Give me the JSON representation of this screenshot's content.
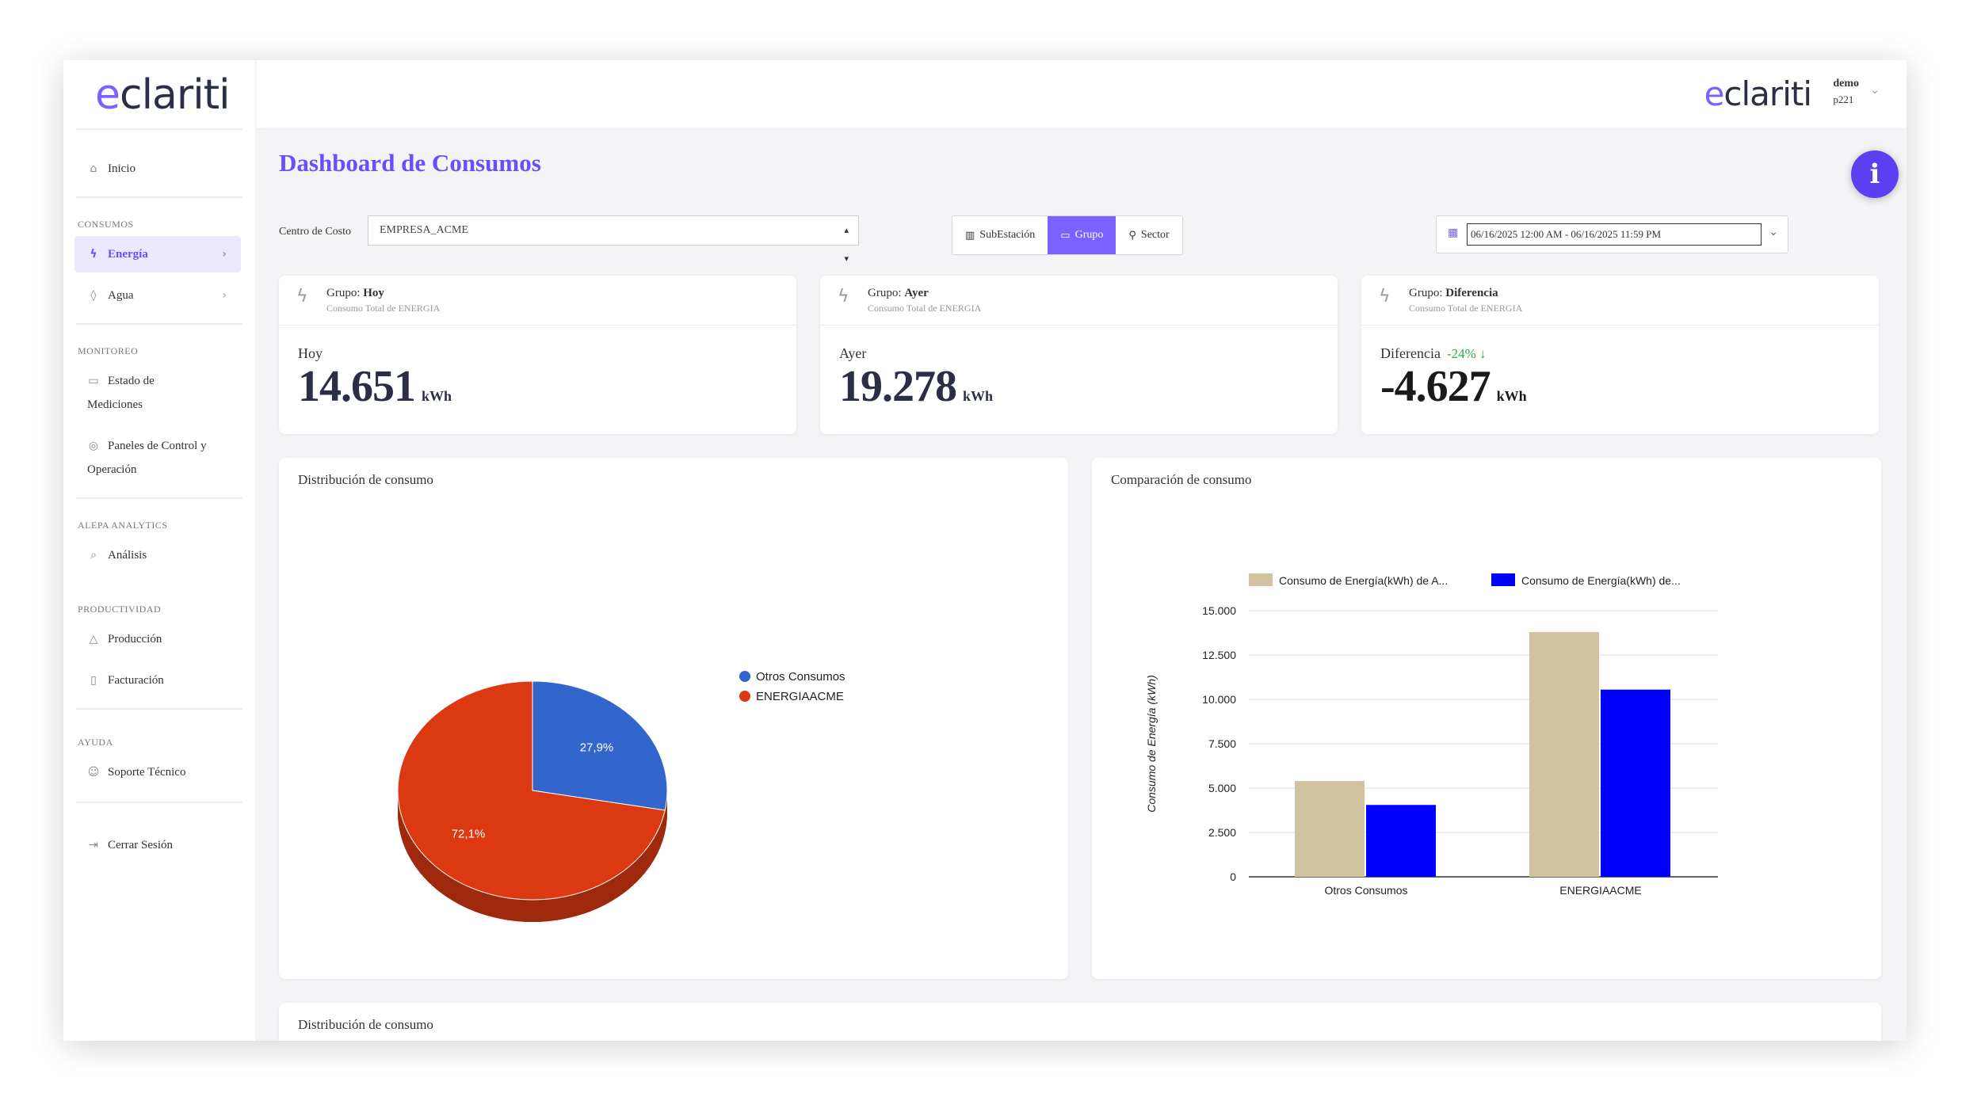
{
  "brand": {
    "name": "clariti",
    "letter": "e"
  },
  "user": {
    "name": "demo",
    "code": "p221"
  },
  "sidebar": {
    "inicio": "Inicio",
    "sections": {
      "consumos": "CONSUMOS",
      "monitoreo": "MONITOREO",
      "analytics": "ALEPA ANALYTICS",
      "productividad": "PRODUCTIVIDAD",
      "ayuda": "AYUDA"
    },
    "energia": "Energía",
    "agua": "Agua",
    "estado_line1": "Estado de",
    "estado_line2": "Mediciones",
    "paneles_line1": "Paneles de Control y",
    "paneles_line2": "Operación",
    "analisis": "Análisis",
    "produccion": "Producción",
    "facturacion": "Facturación",
    "soporte": "Soporte Técnico",
    "cerrar": "Cerrar Sesión"
  },
  "page": {
    "title": "Dashboard de Consumos"
  },
  "filters": {
    "cost_center_label": "Centro de Costo",
    "cost_center_value": "EMPRESA_ACME",
    "segments": [
      "SubEstación",
      "Grupo",
      "Sector"
    ],
    "active_segment": "Grupo",
    "date_range": "06/16/2025 12:00 AM - 06/16/2025 11:59 PM"
  },
  "kpis": {
    "subtitle": "Consumo Total de ENERGIA",
    "group_prefix": "Grupo:",
    "hoy": {
      "name": "Hoy",
      "label": "Hoy",
      "value": "14.651",
      "unit": "kWh"
    },
    "ayer": {
      "name": "Ayer",
      "label": "Ayer",
      "value": "19.278",
      "unit": "kWh"
    },
    "diferencia": {
      "name": "Diferencia",
      "label": "Diferencia",
      "delta": "-24%",
      "value": "-4.627",
      "unit": "kWh"
    }
  },
  "panels": {
    "distribucion": "Distribución de consumo",
    "comparacion": "Comparación de consumo",
    "distribucion2": "Distribución de consumo"
  },
  "colors": {
    "accent": "#6a4dff",
    "pie_otros": "#3366cc",
    "pie_energia": "#dc3912",
    "bar_a": "#cfc3a0",
    "bar_b": "#0000ff"
  },
  "chart_data": [
    {
      "type": "pie",
      "title": "Distribución de consumo",
      "labels": [
        "Otros Consumos",
        "ENERGIAACME"
      ],
      "values": [
        27.9,
        72.1
      ],
      "data_labels": [
        "27,9%",
        "72,1%"
      ],
      "legend": "right"
    },
    {
      "type": "bar",
      "title": "Comparación de consumo",
      "categories": [
        "Otros Consumos",
        "ENERGIAACME"
      ],
      "series": [
        {
          "name": "Consumo de Energía(kWh) de A...",
          "values": [
            5400,
            13800
          ]
        },
        {
          "name": "Consumo de Energía(kWh) de...",
          "values": [
            4050,
            10550
          ]
        }
      ],
      "ylabel": "Consumo de Energía (kWh)",
      "ylim": [
        0,
        15000
      ],
      "yticks": [
        0,
        2500,
        5000,
        7500,
        10000,
        12500,
        15000
      ],
      "ytick_labels": [
        "0",
        "2.500",
        "5.000",
        "7.500",
        "10.000",
        "12.500",
        "15.000"
      ],
      "legend": "top",
      "grid": true
    }
  ]
}
